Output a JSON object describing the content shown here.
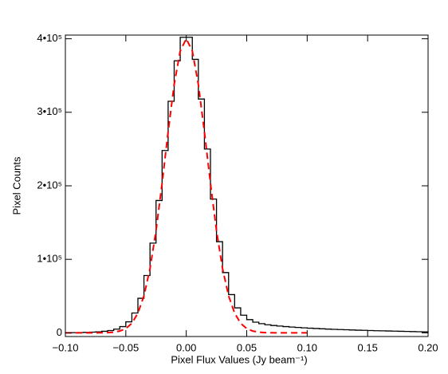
{
  "chart_data": {
    "type": "histogram",
    "xlabel": "Pixel Flux Values (Jy beam⁻¹)",
    "ylabel": "Pixel Counts",
    "xlim": [
      -0.1,
      0.2
    ],
    "ylim": [
      -5000,
      405000
    ],
    "xticks": [
      {
        "value": -0.1,
        "label": "−0.10"
      },
      {
        "value": -0.05,
        "label": "−0.05"
      },
      {
        "value": 0,
        "label": "0.00"
      },
      {
        "value": 0.05,
        "label": "0.05"
      },
      {
        "value": 0.1,
        "label": "0.10"
      },
      {
        "value": 0.15,
        "label": "0.15"
      },
      {
        "value": 0.2,
        "label": "0.20"
      }
    ],
    "yticks": [
      0,
      {
        "value": 100000,
        "label": "1•10⁵"
      },
      {
        "value": 200000,
        "label": "2•10⁵"
      },
      {
        "value": 300000,
        "label": "3•10⁵"
      },
      {
        "value": 400000,
        "label": "4•10⁵"
      }
    ],
    "bins": [
      -0.1,
      -0.095,
      -0.09,
      -0.085,
      -0.08,
      -0.075,
      -0.07,
      -0.065,
      -0.06,
      -0.055,
      -0.05,
      -0.045,
      -0.04,
      -0.035,
      -0.03,
      -0.025,
      -0.02,
      -0.015,
      -0.01,
      -0.005,
      0,
      0.005,
      0.01,
      0.015,
      0.02,
      0.025,
      0.03,
      0.035,
      0.04,
      0.045,
      0.05,
      0.055,
      0.06,
      0.065,
      0.07,
      0.075,
      0.08,
      0.085,
      0.09,
      0.095,
      0.1,
      0.105,
      0.11,
      0.115,
      0.12,
      0.125,
      0.13,
      0.135,
      0.14,
      0.145,
      0.15,
      0.155,
      0.16,
      0.165,
      0.17,
      0.175,
      0.18,
      0.185,
      0.19,
      0.195,
      0.2
    ],
    "counts": [
      200,
      300,
      450,
      650,
      950,
      1400,
      2100,
      3100,
      5000,
      8500,
      15000,
      27000,
      47000,
      78000,
      122000,
      180000,
      248000,
      315000,
      370000,
      402000,
      402000,
      372000,
      318000,
      250000,
      182000,
      124000,
      82000,
      52000,
      34000,
      24000,
      18000,
      14500,
      12500,
      11000,
      10000,
      9200,
      8500,
      7900,
      7300,
      6800,
      6300,
      5900,
      5500,
      5100,
      4800,
      4500,
      4200,
      3900,
      3600,
      3400,
      3100,
      2900,
      2700,
      2500,
      2300,
      2100,
      1900,
      1700,
      1500,
      1300
    ],
    "color": "#000000",
    "fit": {
      "color": "#ff0000",
      "x": [
        -0.1,
        -0.095,
        -0.09,
        -0.085,
        -0.08,
        -0.075,
        -0.07,
        -0.065,
        -0.06,
        -0.055,
        -0.05,
        -0.045,
        -0.04,
        -0.035,
        -0.03,
        -0.025,
        -0.02,
        -0.015,
        -0.01,
        -0.005,
        0,
        0.005,
        0.01,
        0.015,
        0.02,
        0.025,
        0.03,
        0.035,
        0.04,
        0.045,
        0.05,
        0.055,
        0.06,
        0.065,
        0.07,
        0.075,
        0.08,
        0.085,
        0.09,
        0.095,
        0.1
      ],
      "values": [
        0,
        0,
        0,
        0,
        8,
        30,
        101,
        316,
        910,
        2410,
        5850,
        13000,
        26800,
        50400,
        87400,
        139100,
        203400,
        273500,
        337800,
        383400,
        400000,
        383400,
        337800,
        273500,
        203400,
        139100,
        87400,
        50400,
        26800,
        13000,
        5850,
        2410,
        910,
        316,
        101,
        30,
        8,
        0,
        0,
        0,
        0
      ]
    }
  }
}
